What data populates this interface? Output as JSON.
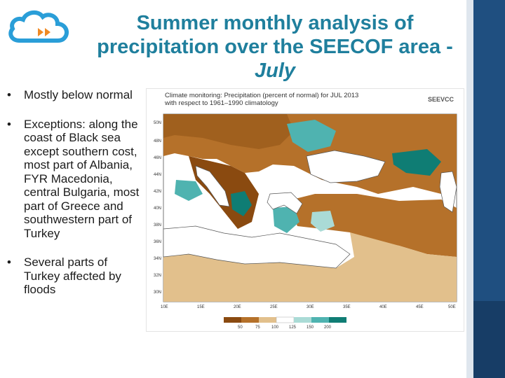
{
  "slide": {
    "title_line1": "Summer monthly analysis of",
    "title_line2": "precipitation over the SEECOF area -",
    "title_line3": "July",
    "bullet_marker": "•",
    "bullets": [
      "Mostly below normal",
      "Exceptions: along the coast of Black sea except southern cost, most part of Albania, FYR Macedonia, central Bulgaria, most part of Greece and southwestern part of Turkey",
      "Several parts of Turkey affected by floods"
    ]
  },
  "map": {
    "header_line1": "Climate monitoring: Precipitation (percent of normal) for JUL 2013",
    "header_line2": "with respect to 1961–1990 climatology",
    "logo_text": "SEEVCC",
    "lat_labels": [
      "50N",
      "48N",
      "46N",
      "44N",
      "42N",
      "40N",
      "38N",
      "36N",
      "34N",
      "32N",
      "30N"
    ],
    "lon_labels": [
      "10E",
      "15E",
      "20E",
      "25E",
      "30E",
      "35E",
      "40E",
      "45E",
      "50E"
    ],
    "legend_labels": [
      "50",
      "75",
      "100",
      "125",
      "150",
      "200"
    ],
    "legend_colors": [
      "#8a4a10",
      "#b5712a",
      "#e2c08c",
      "#ffffff",
      "#aadbd6",
      "#4fb3b0",
      "#0f7d74"
    ]
  },
  "colors": {
    "title": "#1f7f9d",
    "sidebar": "#1f4f80",
    "land_dry": "#b5712a",
    "land_verydry": "#8a4a10",
    "land_slightdry": "#e2c08c",
    "wet": "#4fb3b0",
    "verywet": "#0f7d74",
    "sea": "#ffffff"
  }
}
